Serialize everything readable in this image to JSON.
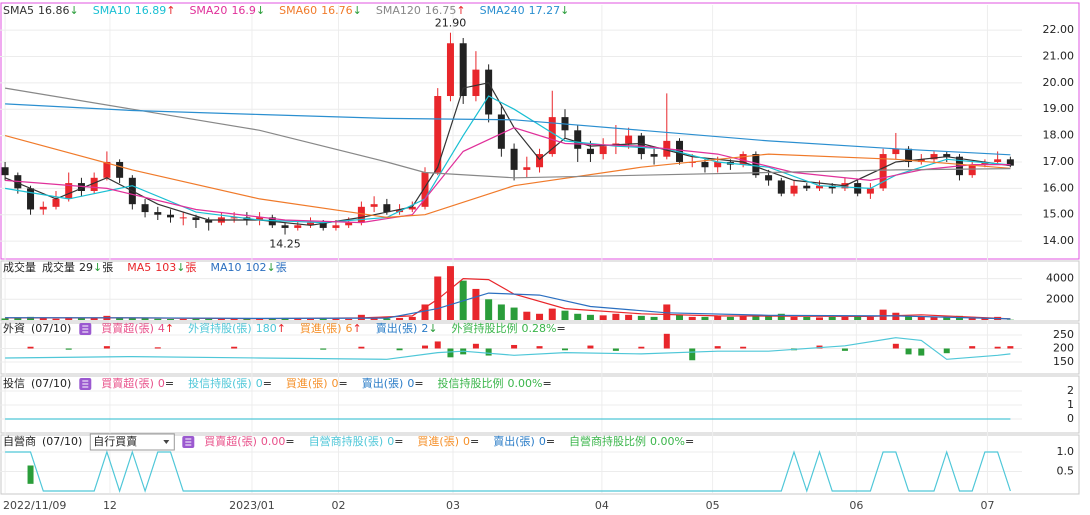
{
  "trend_colors": {
    "↑": "#e8262b",
    "↓": "#2a9d3a",
    "=": "#222222"
  },
  "chart_data": [
    {
      "type": "candlestick",
      "up_color": "#e8262b",
      "down_color": "#222222",
      "xlim": [
        -0.4,
        79.6
      ],
      "xticks": [
        {
          "value": 0,
          "label": "2022/11/09"
        },
        {
          "value": 8.24,
          "label": "12"
        },
        {
          "value": 19.4,
          "label": "2023/01"
        },
        {
          "value": 26.2,
          "label": "02"
        },
        {
          "value": 35.2,
          "label": "03"
        },
        {
          "value": 46.9,
          "label": "04"
        },
        {
          "value": 55.6,
          "label": "05"
        },
        {
          "value": 66.9,
          "label": "06"
        },
        {
          "value": 77.2,
          "label": "07"
        }
      ],
      "ylim": [
        13.36,
        22.95
      ],
      "yticks": [
        {
          "value": 14,
          "label": "14.00"
        },
        {
          "value": 15,
          "label": "15.00"
        },
        {
          "value": 16,
          "label": "16.00"
        },
        {
          "value": 17,
          "label": "17.00"
        },
        {
          "value": 18,
          "label": "18.00"
        },
        {
          "value": 19,
          "label": "19.00"
        },
        {
          "value": 20,
          "label": "20.00"
        },
        {
          "value": 21,
          "label": "21.00"
        },
        {
          "value": 22,
          "label": "22.00"
        }
      ],
      "open": [
        16.8,
        16.5,
        16.0,
        15.2,
        15.3,
        15.6,
        16.2,
        15.9,
        16.4,
        17.0,
        16.4,
        15.4,
        15.1,
        15.0,
        14.9,
        14.9,
        14.8,
        14.7,
        14.9,
        14.9,
        14.8,
        14.9,
        14.6,
        14.5,
        14.6,
        14.7,
        14.5,
        14.6,
        14.7,
        15.3,
        15.4,
        15.1,
        15.2,
        15.3,
        16.6,
        19.5,
        21.5,
        19.5,
        20.5,
        18.8,
        17.5,
        16.7,
        16.8,
        17.3,
        18.7,
        18.2,
        17.5,
        17.3,
        17.6,
        17.7,
        18.0,
        17.3,
        17.2,
        17.8,
        17.0,
        17.0,
        16.8,
        17.0,
        16.9,
        17.3,
        16.5,
        16.3,
        15.8,
        16.1,
        16.0,
        16.1,
        16.0,
        16.2,
        15.8,
        16.0,
        17.3,
        17.5,
        17.0,
        17.1,
        17.3,
        17.2,
        16.5,
        16.9,
        17.0,
        17.1
      ],
      "high": [
        17.0,
        16.6,
        16.1,
        15.5,
        15.9,
        16.6,
        16.4,
        16.6,
        17.4,
        17.1,
        16.5,
        15.6,
        15.3,
        15.2,
        15.1,
        15.0,
        14.9,
        15.1,
        15.1,
        15.1,
        15.1,
        15.0,
        14.7,
        14.8,
        14.9,
        14.8,
        14.8,
        14.9,
        15.5,
        15.7,
        15.6,
        15.4,
        15.5,
        16.8,
        19.8,
        21.9,
        21.7,
        21.2,
        20.7,
        19.1,
        17.7,
        17.2,
        17.5,
        19.7,
        19.0,
        18.4,
        17.8,
        17.9,
        18.4,
        18.3,
        18.1,
        17.5,
        19.6,
        17.9,
        17.3,
        17.1,
        17.2,
        17.1,
        17.4,
        17.4,
        16.7,
        16.4,
        16.3,
        16.2,
        16.3,
        16.2,
        16.4,
        16.3,
        16.2,
        17.5,
        18.1,
        17.6,
        17.3,
        17.4,
        17.4,
        17.3,
        17.0,
        17.1,
        17.4,
        17.2
      ],
      "low": [
        16.3,
        15.8,
        15.0,
        15.0,
        15.2,
        15.5,
        15.7,
        15.8,
        16.3,
        16.2,
        15.2,
        14.9,
        14.8,
        14.7,
        14.6,
        14.5,
        14.4,
        14.6,
        14.7,
        14.6,
        14.6,
        14.5,
        14.25,
        14.4,
        14.5,
        14.4,
        14.4,
        14.5,
        14.6,
        15.1,
        15.0,
        15.0,
        15.1,
        15.2,
        16.5,
        19.3,
        19.2,
        19.3,
        18.5,
        17.2,
        16.3,
        16.4,
        16.6,
        17.2,
        17.9,
        17.0,
        17.0,
        17.1,
        17.3,
        17.5,
        17.1,
        16.9,
        17.1,
        16.9,
        16.8,
        16.6,
        16.6,
        16.7,
        16.8,
        16.4,
        16.1,
        15.7,
        15.7,
        15.9,
        15.9,
        15.8,
        15.9,
        15.7,
        15.6,
        15.9,
        17.1,
        16.8,
        16.9,
        17.0,
        17.0,
        16.3,
        16.4,
        16.8,
        16.9,
        16.8
      ],
      "close": [
        16.5,
        16.0,
        15.2,
        15.3,
        15.6,
        16.2,
        15.9,
        16.4,
        17.0,
        16.4,
        15.4,
        15.1,
        15.0,
        14.9,
        14.9,
        14.8,
        14.7,
        14.9,
        14.9,
        14.8,
        14.9,
        14.6,
        14.5,
        14.6,
        14.7,
        14.5,
        14.6,
        14.7,
        15.3,
        15.4,
        15.1,
        15.2,
        15.3,
        16.6,
        19.5,
        21.5,
        19.5,
        20.5,
        18.8,
        17.5,
        16.7,
        16.8,
        17.3,
        18.7,
        18.2,
        17.5,
        17.3,
        17.6,
        17.7,
        18.0,
        17.3,
        17.2,
        17.8,
        17.0,
        17.0,
        16.8,
        17.0,
        16.9,
        17.3,
        16.5,
        16.3,
        15.8,
        16.1,
        16.0,
        16.1,
        16.0,
        16.2,
        15.8,
        16.0,
        17.3,
        17.5,
        17.0,
        17.1,
        17.3,
        17.2,
        16.5,
        16.9,
        17.0,
        17.1,
        16.86
      ],
      "series": [
        {
          "name": "SMA5",
          "last": 16.86,
          "trend": "↓",
          "color": "#333333",
          "x": [
            0,
            4,
            8,
            12,
            16,
            20,
            24,
            28,
            32,
            34,
            36,
            38,
            40,
            42,
            44,
            46,
            50,
            54,
            58,
            62,
            66,
            70,
            74,
            79
          ],
          "values": [
            16.4,
            15.6,
            16.4,
            15.4,
            14.8,
            14.8,
            14.6,
            14.9,
            15.3,
            16.8,
            19.8,
            20.0,
            18.3,
            17.1,
            17.9,
            17.6,
            17.7,
            17.2,
            17.0,
            16.3,
            16.1,
            17.0,
            17.2,
            16.86
          ]
        },
        {
          "name": "SMA10",
          "last": 16.89,
          "trend": "↑",
          "color": "#19bfd3",
          "x": [
            0,
            5,
            10,
            15,
            20,
            25,
            30,
            33,
            36,
            38,
            40,
            44,
            48,
            52,
            56,
            60,
            64,
            68,
            70,
            74,
            79
          ],
          "values": [
            16.0,
            15.6,
            16.1,
            15.1,
            14.8,
            14.7,
            14.9,
            15.6,
            18.0,
            19.5,
            19.0,
            17.8,
            17.6,
            17.5,
            17.0,
            16.8,
            16.1,
            16.0,
            16.5,
            17.1,
            16.89
          ]
        },
        {
          "name": "SMA20",
          "last": 16.9,
          "trend": "↓",
          "color": "#e0309a",
          "x": [
            0,
            8,
            15,
            22,
            28,
            32,
            36,
            40,
            44,
            50,
            56,
            62,
            68,
            72,
            76,
            79
          ],
          "values": [
            16.3,
            16.0,
            15.2,
            14.8,
            14.7,
            15.0,
            17.4,
            18.3,
            17.7,
            17.6,
            17.3,
            16.6,
            16.3,
            16.7,
            16.9,
            16.9
          ]
        },
        {
          "name": "SMA60",
          "last": 16.76,
          "trend": "↓",
          "color": "#f07a2a",
          "x": [
            0,
            10,
            20,
            30,
            33,
            40,
            50,
            60,
            70,
            79
          ],
          "values": [
            18.0,
            16.7,
            15.6,
            14.9,
            15.0,
            16.1,
            16.8,
            17.3,
            17.1,
            16.76
          ]
        },
        {
          "name": "SMA120",
          "last": 16.75,
          "trend": "↑",
          "color": "#888888",
          "x": [
            0,
            10,
            20,
            30,
            33,
            40,
            50,
            60,
            70,
            79
          ],
          "values": [
            19.8,
            19.0,
            18.2,
            17.0,
            16.6,
            16.4,
            16.5,
            16.6,
            16.7,
            16.75
          ]
        },
        {
          "name": "SMA240",
          "last": 17.27,
          "trend": "↓",
          "color": "#2b8fd0",
          "x": [
            0,
            10,
            20,
            30,
            40,
            50,
            60,
            70,
            79
          ],
          "values": [
            19.2,
            18.95,
            18.8,
            18.65,
            18.6,
            18.2,
            17.8,
            17.5,
            17.27
          ]
        }
      ],
      "annotations": [
        {
          "x": 35,
          "value": 21.9,
          "label": "21.90",
          "position": "above"
        },
        {
          "x": 22,
          "value": 14.25,
          "label": "14.25",
          "position": "below"
        }
      ]
    },
    {
      "type": "volume",
      "title": "成交量",
      "up_color": "#e8262b",
      "down_color": "#2a9d3a",
      "ylim": [
        0,
        5600
      ],
      "yticks": [
        2000,
        4000
      ],
      "bars": {
        "name": "成交量",
        "last": 29,
        "trend": "↓",
        "unit": "張",
        "color": "#222222",
        "values": [
          150,
          200,
          300,
          150,
          120,
          250,
          150,
          200,
          400,
          250,
          200,
          150,
          120,
          100,
          100,
          120,
          100,
          150,
          100,
          120,
          100,
          150,
          200,
          100,
          100,
          150,
          120,
          100,
          500,
          200,
          150,
          200,
          300,
          1500,
          4200,
          5200,
          3800,
          3000,
          2000,
          1500,
          1200,
          800,
          600,
          1100,
          900,
          600,
          500,
          450,
          600,
          500,
          400,
          300,
          1500,
          500,
          300,
          300,
          400,
          300,
          400,
          500,
          400,
          600,
          300,
          300,
          250,
          300,
          300,
          400,
          300,
          1000,
          700,
          400,
          300,
          300,
          300,
          400,
          300,
          250,
          300,
          29
        ]
      },
      "series": [
        {
          "name": "MA5",
          "last": 103,
          "trend": "↓",
          "unit": "張",
          "color": "#e8262b",
          "x": [
            0,
            10,
            20,
            28,
            32,
            34,
            36,
            38,
            40,
            44,
            50,
            56,
            62,
            68,
            72,
            79
          ],
          "values": [
            200,
            200,
            130,
            200,
            400,
            2000,
            4000,
            3900,
            2500,
            1100,
            600,
            400,
            380,
            350,
            500,
            103
          ]
        },
        {
          "name": "MA10",
          "last": 102,
          "trend": "↓",
          "unit": "張",
          "color": "#2b6fc0",
          "x": [
            0,
            10,
            20,
            30,
            34,
            38,
            42,
            46,
            52,
            60,
            70,
            79
          ],
          "values": [
            220,
            210,
            150,
            180,
            1100,
            2600,
            2400,
            1300,
            700,
            450,
            400,
            102
          ]
        }
      ]
    },
    {
      "type": "bar-line",
      "title": "外資",
      "date": "(07/10)",
      "up_color": "#e8262b",
      "down_color": "#2a9d3a",
      "ylim": [
        113,
        287
      ],
      "yticks": [
        150,
        200,
        250
      ],
      "y2lim": [
        -40,
        40
      ],
      "bars": {
        "name": "買賣超(張)",
        "last": 4,
        "trend": "↑",
        "color": "#e8508a",
        "axis": "y2",
        "x": [
          2,
          5,
          8,
          12,
          18,
          25,
          28,
          31,
          33,
          34,
          35,
          36,
          37,
          38,
          40,
          42,
          44,
          46,
          48,
          50,
          52,
          54,
          56,
          58,
          62,
          64,
          66,
          70,
          71,
          72,
          74,
          76,
          78,
          79
        ],
        "values": [
          3,
          -2,
          4,
          2,
          3,
          -2,
          3,
          -3,
          5,
          12,
          -15,
          -10,
          8,
          -12,
          6,
          4,
          -3,
          5,
          -4,
          3,
          25,
          -20,
          4,
          3,
          -3,
          5,
          -4,
          8,
          -10,
          -12,
          -8,
          4,
          3,
          4
        ]
      },
      "series": [
        {
          "name": "外資持股(張)",
          "last": 180,
          "trend": "↑",
          "color": "#4fc7d8",
          "x": [
            0,
            10,
            20,
            30,
            34,
            36,
            40,
            44,
            50,
            56,
            60,
            66,
            70,
            72,
            74,
            78,
            79
          ],
          "values": [
            165,
            170,
            165,
            160,
            185,
            190,
            175,
            185,
            180,
            190,
            190,
            210,
            240,
            230,
            160,
            175,
            180
          ]
        }
      ],
      "legend": [
        {
          "name": "買進(張)",
          "last": 6,
          "trend": "↑",
          "color": "#f5902a"
        },
        {
          "name": "賣出(張)",
          "last": 2,
          "trend": "↓",
          "color": "#2a7cc7"
        },
        {
          "name": "外資持股比例",
          "last": 0.28,
          "last_label": "0.28%",
          "trend": "=",
          "color": "#3ab54a"
        }
      ]
    },
    {
      "type": "bar-line",
      "title": "投信",
      "date": "(07/10)",
      "up_color": "#e8262b",
      "down_color": "#2a9d3a",
      "ylim": [
        -0.93,
        2.79
      ],
      "yticks": [
        0,
        1,
        2
      ],
      "bars": {
        "name": "買賣超(張)",
        "last": 0,
        "trend": "=",
        "color": "#e8508a"
      },
      "series": [
        {
          "name": "投信持股(張)",
          "last": 0,
          "trend": "=",
          "color": "#4fc7d8",
          "x": [
            0,
            79
          ],
          "values": [
            0,
            0
          ]
        }
      ],
      "legend": [
        {
          "name": "買進(張)",
          "last": 0,
          "trend": "=",
          "color": "#f5902a"
        },
        {
          "name": "賣出(張)",
          "last": 0,
          "trend": "=",
          "color": "#2a7cc7"
        },
        {
          "name": "投信持股比例",
          "last": 0,
          "last_label": "0.00%",
          "trend": "=",
          "color": "#3ab54a"
        }
      ]
    },
    {
      "type": "bar-line",
      "title": "自營商",
      "date": "(07/10)",
      "selector": "自行買賣",
      "up_color": "#e8262b",
      "down_color": "#2a9d3a",
      "ylim": [
        -0.05,
        1.36
      ],
      "yticks": [
        0.5,
        {
          "value": 1,
          "label": "1.0"
        }
      ],
      "y2lim": [
        -1.5,
        1.5
      ],
      "bars": {
        "name": "買賣超(張)",
        "last": 0,
        "last_label": "0.00",
        "trend": "=",
        "color": "#e8508a",
        "axis": "y2",
        "x": [
          2
        ],
        "values": [
          -1
        ]
      },
      "series": [
        {
          "name": "自營商持股(張)",
          "last": 0,
          "trend": "=",
          "color": "#4fc7d8",
          "values": [
            1,
            1,
            1,
            0,
            0,
            0,
            0,
            0,
            1,
            0,
            1,
            0,
            1,
            1,
            0,
            0,
            0,
            0,
            0,
            0,
            0,
            0,
            0,
            0,
            0,
            0,
            0,
            0,
            0,
            0,
            0,
            0,
            0,
            0,
            0,
            0,
            0,
            0,
            0,
            0,
            0,
            0,
            0,
            0,
            0,
            0,
            0,
            0,
            0,
            0,
            0,
            0,
            0,
            0,
            0,
            0,
            0,
            0,
            0,
            0,
            0,
            0,
            1,
            0,
            1,
            0,
            0,
            0,
            0,
            1,
            1,
            0,
            0,
            0,
            1,
            0,
            0,
            1,
            1,
            0
          ]
        }
      ],
      "legend": [
        {
          "name": "買進(張)",
          "last": 0,
          "trend": "=",
          "color": "#f5902a"
        },
        {
          "name": "賣出(張)",
          "last": 0,
          "trend": "=",
          "color": "#2a7cc7"
        },
        {
          "name": "自營商持股比例",
          "last": 0,
          "last_label": "0.00%",
          "trend": "=",
          "color": "#3ab54a"
        }
      ]
    }
  ]
}
